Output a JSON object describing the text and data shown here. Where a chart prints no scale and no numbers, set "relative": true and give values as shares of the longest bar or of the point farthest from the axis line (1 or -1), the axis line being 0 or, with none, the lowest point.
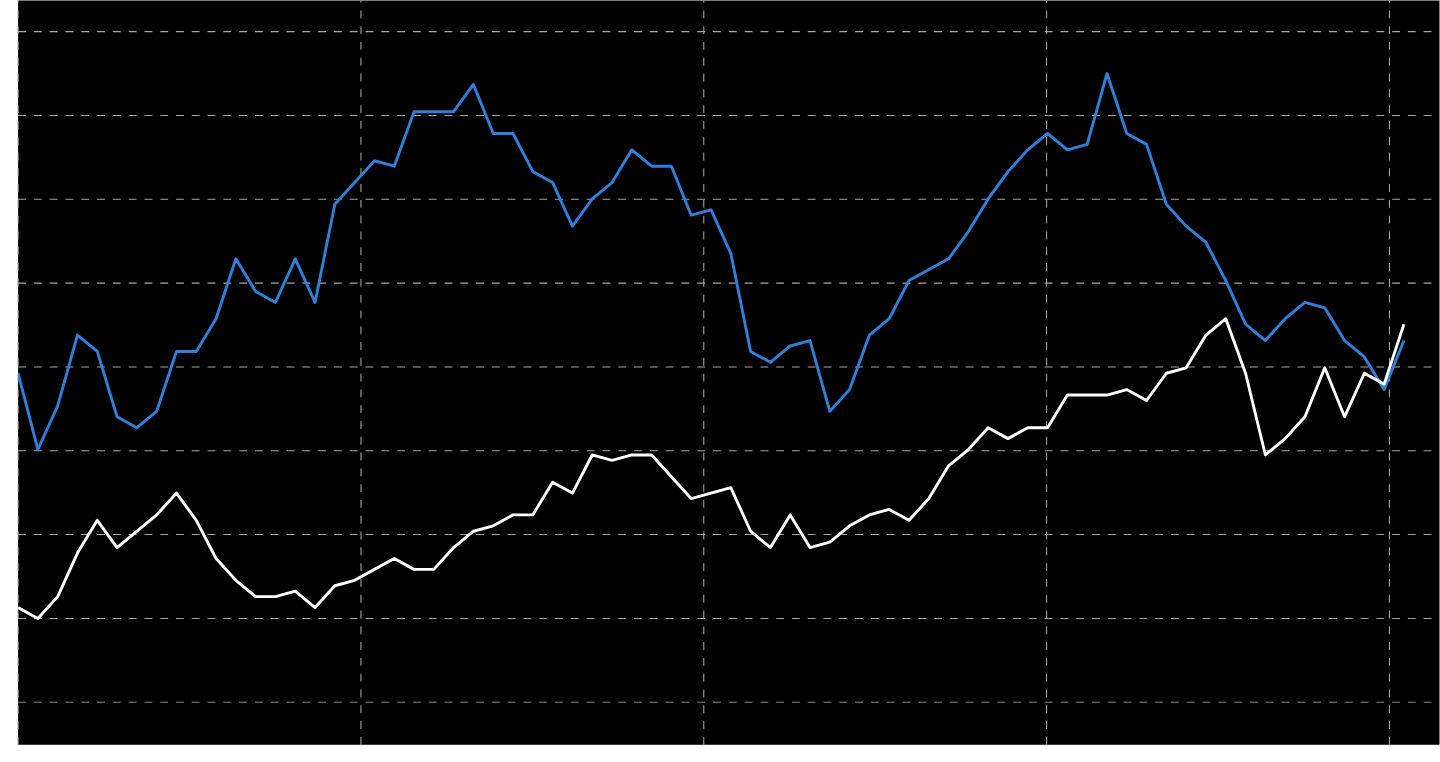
{
  "chart_data": {
    "type": "line",
    "relative": true,
    "grid": true,
    "marker": "none",
    "line_style": "solid",
    "categories": [
      null,
      null,
      null,
      null,
      null,
      null,
      null,
      null,
      null,
      null,
      null,
      null,
      null,
      null,
      null,
      null,
      null,
      null,
      null,
      null,
      null,
      null,
      null,
      null,
      null,
      null,
      null,
      null,
      null,
      null,
      null,
      null,
      null,
      null,
      null,
      null,
      null,
      null,
      null,
      null,
      null,
      null,
      null,
      null,
      null,
      null,
      null,
      null,
      null,
      null,
      null,
      null,
      null,
      null,
      null,
      null,
      null,
      null,
      null,
      null,
      null,
      null,
      null,
      null,
      null,
      null,
      null,
      null,
      null,
      null,
      null
    ],
    "series": [
      {
        "color": "#2f80db",
        "values": [
          0.45,
          0.31,
          0.39,
          0.52,
          0.49,
          0.37,
          0.35,
          0.38,
          0.49,
          0.49,
          0.55,
          0.66,
          0.6,
          0.58,
          0.66,
          0.58,
          0.76,
          0.8,
          0.84,
          0.83,
          0.93,
          0.93,
          0.93,
          0.98,
          0.89,
          0.89,
          0.82,
          0.8,
          0.72,
          0.77,
          0.8,
          0.86,
          0.83,
          0.83,
          0.74,
          0.75,
          0.67,
          0.49,
          0.47,
          0.5,
          0.51,
          0.38,
          0.42,
          0.52,
          0.55,
          0.62,
          0.64,
          0.66,
          0.71,
          0.77,
          0.82,
          0.86,
          0.89,
          0.86,
          0.87,
          1,
          0.89,
          0.87,
          0.76,
          0.72,
          0.69,
          0.62,
          0.54,
          0.51,
          0.55,
          0.58,
          0.57,
          0.51,
          0.48,
          0.42,
          0.51
        ]
      },
      {
        "color": "#ffffff",
        "values": [
          0.02,
          0,
          0.04,
          0.12,
          0.18,
          0.13,
          0.16,
          0.19,
          0.23,
          0.18,
          0.11,
          0.07,
          0.04,
          0.04,
          0.05,
          0.02,
          0.06,
          0.07,
          0.09,
          0.11,
          0.09,
          0.09,
          0.13,
          0.16,
          0.17,
          0.19,
          0.19,
          0.25,
          0.23,
          0.3,
          0.29,
          0.3,
          0.3,
          0.26,
          0.22,
          0.23,
          0.24,
          0.16,
          0.13,
          0.19,
          0.13,
          0.14,
          0.17,
          0.19,
          0.2,
          0.18,
          0.22,
          0.28,
          0.31,
          0.35,
          0.33,
          0.35,
          0.35,
          0.41,
          0.41,
          0.41,
          0.42,
          0.4,
          0.45,
          0.46,
          0.52,
          0.55,
          0.45,
          0.3,
          0.33,
          0.37,
          0.46,
          0.37,
          0.45,
          0.43,
          0.54
        ]
      }
    ]
  }
}
